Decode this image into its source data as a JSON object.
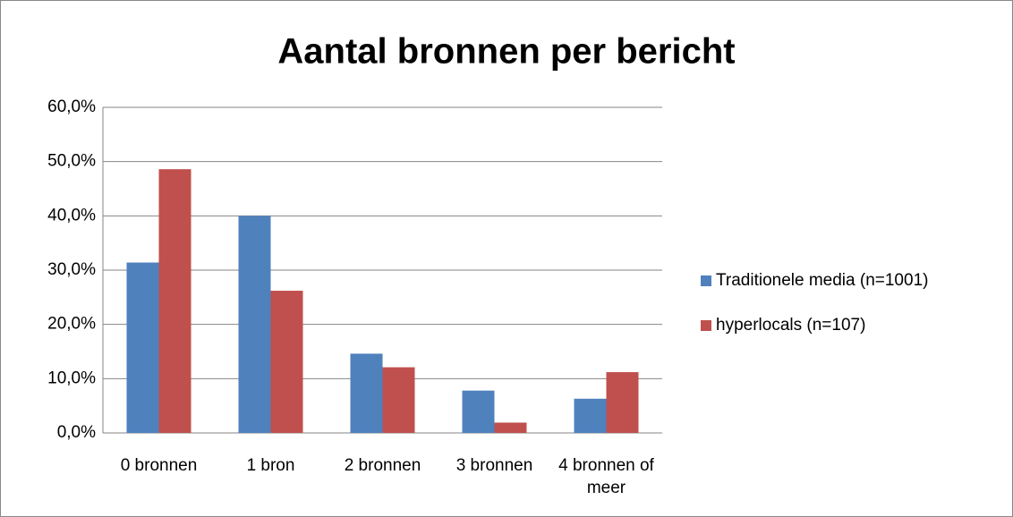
{
  "chart_data": {
    "type": "bar",
    "title": "Aantal bronnen per bericht",
    "categories": [
      "0 bronnen",
      "1 bron",
      "2 bronnen",
      "3 bronnen",
      "4 bronnen of meer"
    ],
    "series": [
      {
        "name": "Traditionele media (n=1001)",
        "color": "#4f81bd",
        "values": [
          31.4,
          40.0,
          14.6,
          7.8,
          6.3
        ]
      },
      {
        "name": "hyperlocals (n=107)",
        "color": "#c0504d",
        "values": [
          48.6,
          26.2,
          12.1,
          1.9,
          11.2
        ]
      }
    ],
    "ylim": [
      0,
      60
    ],
    "yticks": [
      {
        "value": 0,
        "label": "0,0%"
      },
      {
        "value": 10,
        "label": "10,0%"
      },
      {
        "value": 20,
        "label": "20,0%"
      },
      {
        "value": 30,
        "label": "30,0%"
      },
      {
        "value": 40,
        "label": "40,0%"
      },
      {
        "value": 50,
        "label": "50,0%"
      },
      {
        "value": 60,
        "label": "60,0%"
      }
    ],
    "grid": true,
    "legend": "right"
  }
}
